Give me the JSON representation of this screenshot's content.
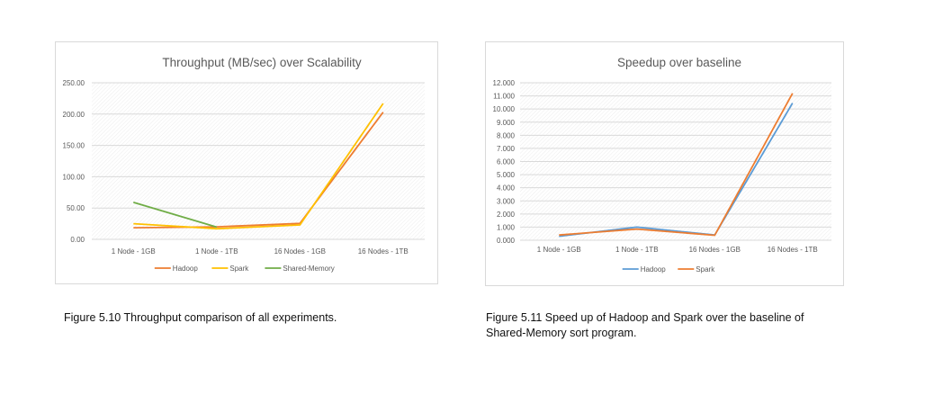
{
  "captions": {
    "figure_510": "Figure 5.10 Throughput comparison of all experiments.",
    "figure_511": "Figure 5.11 Speed up of Hadoop and Spark over the baseline of Shared-Memory sort program."
  },
  "colors": {
    "hadoop": "#ED7D31",
    "spark": "#FFC000",
    "shared_memory": "#70AD47",
    "hadoop_speedup": "#5B9BD5",
    "spark_speedup": "#ED7D31",
    "grid": "#d9d9d9",
    "title": "#595959",
    "tick": "#595959"
  },
  "chart_data": [
    {
      "type": "line",
      "title": "Throughput  (MB/sec) over Scalability",
      "categories": [
        "1 Node - 1GB",
        "1 Node - 1TB",
        "16 Nodes - 1GB",
        "16 Nodes - 1TB"
      ],
      "series": [
        {
          "name": "Hadoop",
          "values": [
            18.5,
            20.0,
            25.5,
            203.0
          ]
        },
        {
          "name": "Spark",
          "values": [
            25.0,
            17.0,
            23.0,
            217.0
          ]
        },
        {
          "name": "Shared-Memory",
          "values": [
            59.0,
            19.5,
            null,
            null
          ]
        }
      ],
      "ylim": [
        0,
        250
      ],
      "yticks": [
        "0.00",
        "50.00",
        "100.00",
        "150.00",
        "200.00",
        "250.00"
      ],
      "ytick_values": [
        0,
        50,
        100,
        150,
        200,
        250
      ],
      "grid": true,
      "legend": "bottom"
    },
    {
      "type": "line",
      "title": "Speedup over baseline",
      "categories": [
        "1 Node - 1GB",
        "1 Node - 1TB",
        "16 Nodes - 1GB",
        "16 Nodes - 1TB"
      ],
      "series": [
        {
          "name": "Hadoop",
          "values": [
            0.3,
            1.0,
            0.4,
            10.45
          ]
        },
        {
          "name": "Spark",
          "values": [
            0.4,
            0.85,
            0.38,
            11.2
          ]
        }
      ],
      "ylim": [
        0,
        12
      ],
      "yticks": [
        "0.000",
        "1.000",
        "2.000",
        "3.000",
        "4.000",
        "5.000",
        "6.000",
        "7.000",
        "8.000",
        "9.000",
        "10.000",
        "11.000",
        "12.000"
      ],
      "ytick_values": [
        0,
        1,
        2,
        3,
        4,
        5,
        6,
        7,
        8,
        9,
        10,
        11,
        12
      ],
      "grid": true,
      "legend": "bottom"
    }
  ]
}
